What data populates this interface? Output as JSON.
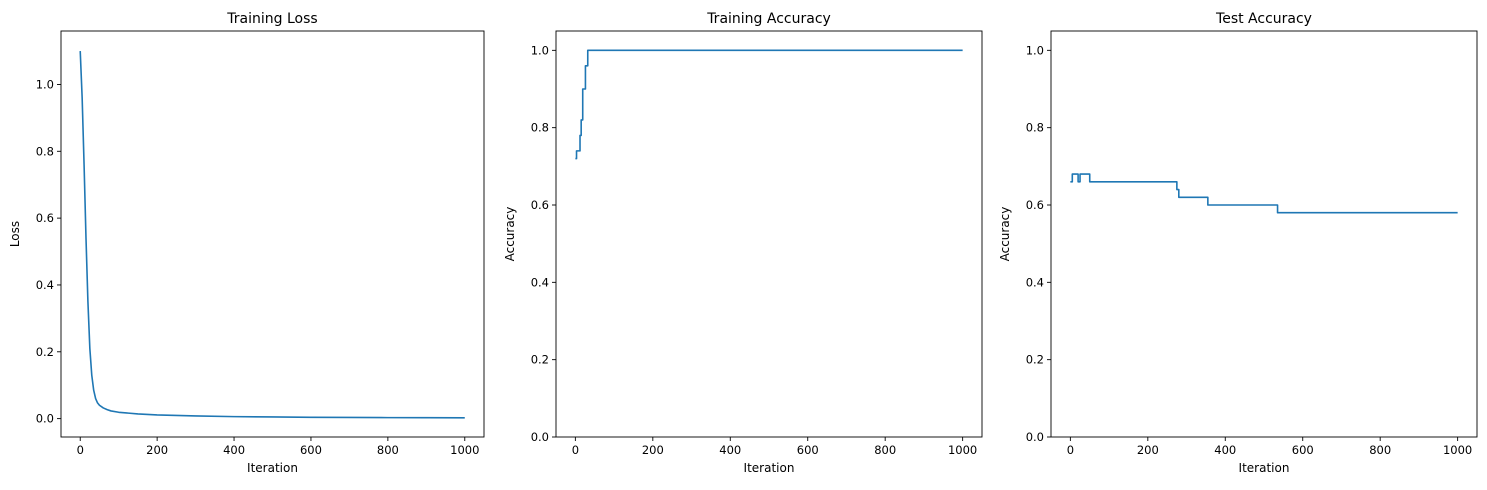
{
  "series_color": "#1f77b4",
  "chart_data": [
    {
      "type": "line",
      "title": "Training Loss",
      "xlabel": "Iteration",
      "ylabel": "Loss",
      "xlim": [
        -50,
        1050
      ],
      "ylim": [
        -0.055,
        1.16
      ],
      "grid": false,
      "xticks": [
        0,
        200,
        400,
        600,
        800,
        1000
      ],
      "xtick_labels": [
        "0",
        "200",
        "400",
        "600",
        "800",
        "1000"
      ],
      "yticks": [
        0.0,
        0.2,
        0.4,
        0.6,
        0.8,
        1.0
      ],
      "ytick_labels": [
        "0.0",
        "0.2",
        "0.4",
        "0.6",
        "0.8",
        "1.0"
      ],
      "series": [
        {
          "x": [
            0,
            5,
            10,
            15,
            20,
            25,
            30,
            35,
            40,
            45,
            50,
            60,
            70,
            80,
            100,
            150,
            200,
            300,
            400,
            500,
            600,
            700,
            800,
            900,
            1000
          ],
          "y": [
            1.1,
            0.96,
            0.76,
            0.54,
            0.35,
            0.21,
            0.13,
            0.085,
            0.06,
            0.047,
            0.04,
            0.032,
            0.027,
            0.023,
            0.019,
            0.014,
            0.011,
            0.008,
            0.006,
            0.005,
            0.004,
            0.0035,
            0.003,
            0.0028,
            0.0025
          ]
        }
      ]
    },
    {
      "type": "line",
      "title": "Training Accuracy",
      "xlabel": "Iteration",
      "ylabel": "Accuracy",
      "xlim": [
        -50,
        1050
      ],
      "ylim": [
        0.0,
        1.05
      ],
      "grid": false,
      "xticks": [
        0,
        200,
        400,
        600,
        800,
        1000
      ],
      "xtick_labels": [
        "0",
        "200",
        "400",
        "600",
        "800",
        "1000"
      ],
      "yticks": [
        0.0,
        0.2,
        0.4,
        0.6,
        0.8,
        1.0
      ],
      "ytick_labels": [
        "0.0",
        "0.2",
        "0.4",
        "0.6",
        "0.8",
        "1.0"
      ],
      "series": [
        {
          "step": true,
          "x": [
            0,
            3,
            8,
            12,
            15,
            19,
            22,
            26,
            29,
            32,
            1000
          ],
          "y": [
            0.72,
            0.74,
            0.74,
            0.78,
            0.82,
            0.9,
            0.9,
            0.96,
            0.96,
            1.0,
            1.0
          ]
        }
      ]
    },
    {
      "type": "line",
      "title": "Test Accuracy",
      "xlabel": "Iteration",
      "ylabel": "Accuracy",
      "xlim": [
        -50,
        1050
      ],
      "ylim": [
        0.0,
        1.05
      ],
      "grid": false,
      "xticks": [
        0,
        200,
        400,
        600,
        800,
        1000
      ],
      "xtick_labels": [
        "0",
        "200",
        "400",
        "600",
        "800",
        "1000"
      ],
      "yticks": [
        0.0,
        0.2,
        0.4,
        0.6,
        0.8,
        1.0
      ],
      "ytick_labels": [
        "0.0",
        "0.2",
        "0.4",
        "0.6",
        "0.8",
        "1.0"
      ],
      "series": [
        {
          "step": true,
          "x": [
            0,
            5,
            20,
            25,
            35,
            50,
            275,
            280,
            355,
            535,
            1000
          ],
          "y": [
            0.66,
            0.68,
            0.66,
            0.68,
            0.68,
            0.66,
            0.64,
            0.62,
            0.6,
            0.58,
            0.58
          ]
        }
      ]
    }
  ]
}
